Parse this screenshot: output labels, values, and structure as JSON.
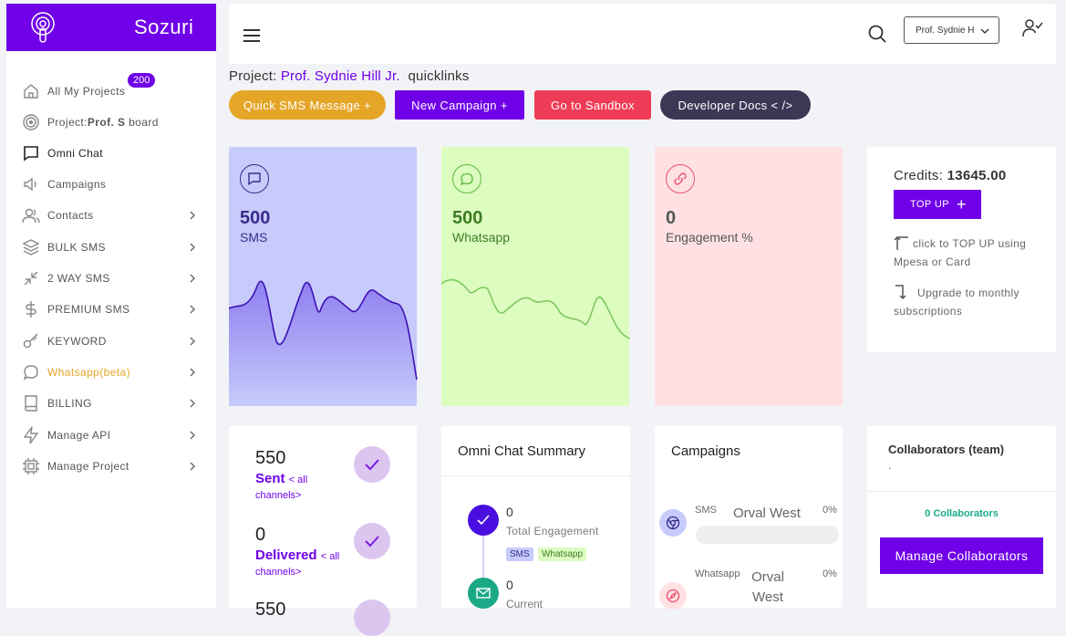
{
  "brand": {
    "name": "Sozuri"
  },
  "sidebar": {
    "items": [
      {
        "label": "All My Projects",
        "badge": "200",
        "icon": "home-icon"
      },
      {
        "prefix": "Project:",
        "bold": "Prof. S",
        "suffix": " board",
        "icon": "target-icon"
      },
      {
        "label": "Omni Chat",
        "icon": "chat-icon"
      },
      {
        "label": "Campaigns",
        "icon": "megaphone-icon"
      },
      {
        "label": "Contacts",
        "icon": "users-icon"
      },
      {
        "label": "BULK SMS",
        "icon": "layers-icon"
      },
      {
        "label": "2 WAY SMS",
        "icon": "arrows-in-icon"
      },
      {
        "label": "PREMIUM SMS",
        "icon": "dollar-icon"
      },
      {
        "label": "KEYWORD",
        "icon": "key-icon"
      },
      {
        "label": "Whatsapp(beta)",
        "icon": "message-circle-icon"
      },
      {
        "label": "BILLING",
        "icon": "book-icon"
      },
      {
        "label": "Manage API",
        "icon": "zap-icon"
      },
      {
        "label": "Manage Project",
        "icon": "cpu-icon"
      }
    ]
  },
  "topbar": {
    "user_select": "Prof. Sydnie H"
  },
  "project": {
    "prefix": "Project:",
    "name": "Prof. Sydnie Hill Jr.",
    "quicklinks": "quicklinks"
  },
  "actions": {
    "quick_sms": "Quick SMS Message +",
    "new_campaign": "New Campaign +",
    "sandbox": "Go to Sandbox",
    "dev_docs": "Developer Docs <  />"
  },
  "stats": {
    "sms": {
      "value": "500",
      "label": "SMS"
    },
    "whatsapp": {
      "value": "500",
      "label": "Whatsapp"
    },
    "engagement": {
      "value": "0",
      "label": "Engagement %"
    }
  },
  "credits": {
    "label": "Credits:",
    "value": "13645.00",
    "topup": "TOP UP",
    "note1": "click to TOP UP using Mpesa or Card",
    "note2": "Upgrade to monthly subscriptions"
  },
  "metrics": {
    "sent": {
      "value": "550",
      "label": "Sent",
      "sub1": "< all",
      "sub2": "channels>"
    },
    "delivered": {
      "value": "0",
      "label": "Delivered",
      "sub1": "< all",
      "sub2": "channels>"
    },
    "third": {
      "value": "550"
    }
  },
  "omni": {
    "title": "Omni Chat Summary",
    "total_value": "0",
    "total_label": "Total Engagement",
    "tag_sms": "SMS",
    "tag_whatsapp": "Whatsapp",
    "current_value": "0",
    "current_label": "Current"
  },
  "campaigns": {
    "title": "Campaigns",
    "rows": [
      {
        "channel": "SMS",
        "name": "Orval West",
        "pct": "0%"
      },
      {
        "channel": "Whatsapp",
        "name": "Orval West",
        "pct": "0%"
      }
    ]
  },
  "collaborators": {
    "title": "Collaborators (team)",
    "dot": ".",
    "count": "0 Collaborators",
    "button": "Manage Collaborators"
  },
  "colors": {
    "brand": "#6f00e8",
    "quick_sms": "#e5a628",
    "sandbox": "#ef3c56",
    "dev_docs": "#3b3856",
    "sms_card": "#c7cbfb",
    "whatsapp_card": "#dcfcc0",
    "engagement_card": "#ffe1e4"
  }
}
